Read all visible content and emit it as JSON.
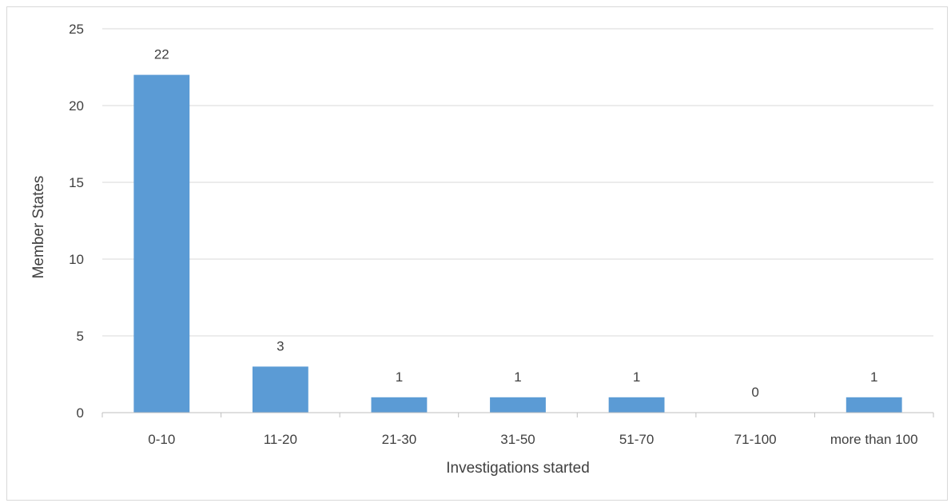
{
  "chart_data": {
    "type": "bar",
    "categories": [
      "0-10",
      "11-20",
      "21-30",
      "31-50",
      "51-70",
      "71-100",
      "more than 100"
    ],
    "values": [
      22,
      3,
      1,
      1,
      1,
      0,
      1
    ],
    "data_labels": [
      "22",
      "3",
      "1",
      "1",
      "1",
      "0",
      "1"
    ],
    "xlabel": "Investigations started",
    "ylabel": "Member States",
    "ylim": [
      0,
      25
    ],
    "yticks": [
      0,
      5,
      10,
      15,
      20,
      25
    ],
    "ytick_labels": [
      "0",
      "5",
      "10",
      "15",
      "20",
      "25"
    ],
    "grid": true,
    "legend": "none",
    "bar_color": "#5b9bd5",
    "gridline_color": "#d9d9d9",
    "axis_color": "#bfbfbf"
  }
}
